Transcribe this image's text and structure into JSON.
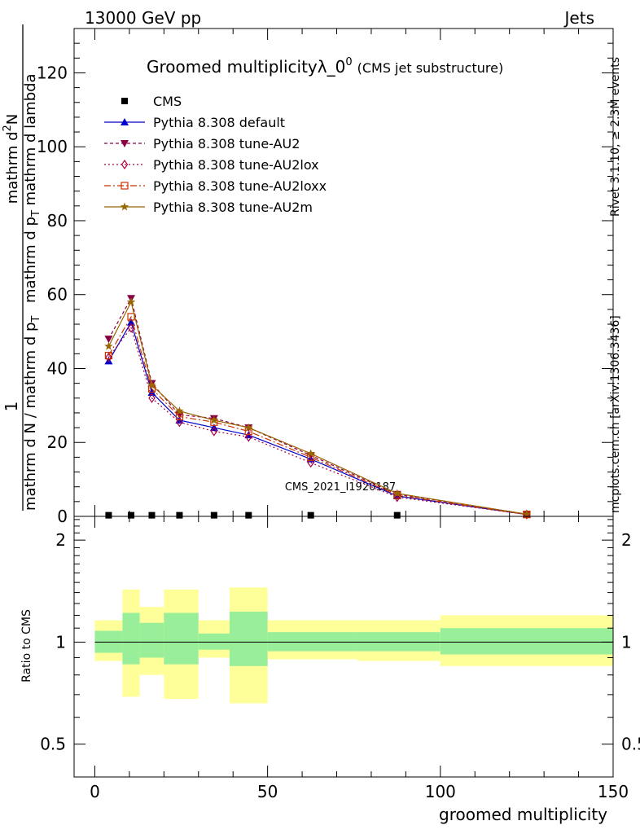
{
  "header": {
    "left": "13000 GeV pp",
    "right": "Jets"
  },
  "side_labels": {
    "rivet": "Rivet 3.1.10, ≥ 2.3M events",
    "mcplots": "mcplots.cern.ch [arXiv:1306.3436]"
  },
  "watermark": "CMS_2021_I1920187",
  "chart_data": [
    {
      "type": "line",
      "title_main": "Groomed multiplicityλ_0",
      "title_sup": "0",
      "title_small": "(CMS jet substructure)",
      "ylabel": {
        "num1": "1",
        "den1": "mathrm d N / mathrm d p",
        "den1_sub": "T",
        "num2": "mathrm d",
        "num2_sup": "2",
        "num2_end": "N",
        "den2": "mathrm d p",
        "den2_sub": "T",
        "den2_end": " mathrm d lambda"
      },
      "xlim": [
        -6,
        150
      ],
      "ylim": [
        0,
        132
      ],
      "yticks": [
        0,
        20,
        40,
        60,
        80,
        100,
        120
      ],
      "ytick_labels": [
        "0",
        "20",
        "40",
        "60",
        "80",
        "100",
        "120"
      ],
      "grid": false,
      "legend_position": "top-left",
      "series": [
        {
          "name": "CMS",
          "color": "#000000",
          "marker": "square",
          "dash": "",
          "x": [
            4,
            10.5,
            16.5,
            24.5,
            34.5,
            44.5,
            62.5,
            87.5
          ],
          "y": [
            0.3,
            0.3,
            0.3,
            0.3,
            0.3,
            0.3,
            0.3,
            0.3
          ]
        },
        {
          "name": "Pythia 8.308 default",
          "color": "#0000cc",
          "marker": "triangle-up",
          "dash": "",
          "x": [
            4,
            10.5,
            16.5,
            24.5,
            34.5,
            44.5,
            62.5,
            87.5,
            125
          ],
          "y": [
            42,
            52.5,
            33.5,
            26,
            24,
            22,
            15.5,
            5.5,
            0.5
          ]
        },
        {
          "name": "Pythia 8.308 tune-AU2",
          "color": "#880044",
          "marker": "triangle-down",
          "dash": "4,3",
          "x": [
            4,
            10.5,
            16.5,
            24.5,
            34.5,
            44.5,
            62.5,
            87.5,
            125
          ],
          "y": [
            48,
            59,
            36,
            27.5,
            26.5,
            24,
            16.5,
            6,
            0.6
          ]
        },
        {
          "name": "Pythia 8.308 tune-AU2lox",
          "color": "#aa0044",
          "marker": "diamond-open",
          "dash": "2,3",
          "x": [
            4,
            10.5,
            16.5,
            24.5,
            34.5,
            44.5,
            62.5,
            87.5,
            125
          ],
          "y": [
            43,
            51,
            32,
            25.5,
            23,
            21.5,
            14.5,
            5.2,
            0.5
          ]
        },
        {
          "name": "Pythia 8.308 tune-AU2loxx",
          "color": "#cc3300",
          "marker": "square-open",
          "dash": "8,3,2,3",
          "x": [
            4,
            10.5,
            16.5,
            24.5,
            34.5,
            44.5,
            62.5,
            87.5,
            125
          ],
          "y": [
            43.5,
            54,
            34.5,
            27,
            25.5,
            23,
            16,
            5.7,
            0.5
          ]
        },
        {
          "name": "Pythia 8.308 tune-AU2m",
          "color": "#996600",
          "marker": "star",
          "dash": "",
          "x": [
            4,
            10.5,
            16.5,
            24.5,
            34.5,
            44.5,
            62.5,
            87.5,
            125
          ],
          "y": [
            46,
            58,
            35.5,
            28.5,
            26,
            24,
            17,
            6.2,
            0.6
          ]
        }
      ]
    },
    {
      "type": "area",
      "ylabel": "Ratio to CMS",
      "xlabel": "groomed multiplicity",
      "xlim": [
        -6,
        150
      ],
      "ylim": [
        0.4,
        2.35
      ],
      "scale": "log",
      "xticks": [
        0,
        50,
        100,
        150
      ],
      "xtick_labels": [
        "0",
        "50",
        "100",
        "150"
      ],
      "yticks": [
        0.5,
        1,
        2
      ],
      "ytick_labels": [
        "0.5",
        "1",
        "2"
      ],
      "reference": 1,
      "grid": false,
      "bins": [
        {
          "lo": 0,
          "hi": 8,
          "stat_lo": 0.93,
          "stat_hi": 1.08,
          "tot_lo": 0.88,
          "tot_hi": 1.16
        },
        {
          "lo": 8,
          "hi": 13,
          "stat_lo": 0.86,
          "stat_hi": 1.22,
          "tot_lo": 0.69,
          "tot_hi": 1.43
        },
        {
          "lo": 13,
          "hi": 20,
          "stat_lo": 0.9,
          "stat_hi": 1.14,
          "tot_lo": 0.8,
          "tot_hi": 1.27
        },
        {
          "lo": 20,
          "hi": 30,
          "stat_lo": 0.86,
          "stat_hi": 1.22,
          "tot_lo": 0.68,
          "tot_hi": 1.43
        },
        {
          "lo": 30,
          "hi": 39,
          "stat_lo": 0.95,
          "stat_hi": 1.06,
          "tot_lo": 0.9,
          "tot_hi": 1.16
        },
        {
          "lo": 39,
          "hi": 50,
          "stat_lo": 0.85,
          "stat_hi": 1.23,
          "tot_lo": 0.66,
          "tot_hi": 1.45
        },
        {
          "lo": 50,
          "hi": 76,
          "stat_lo": 0.94,
          "stat_hi": 1.07,
          "tot_lo": 0.89,
          "tot_hi": 1.16
        },
        {
          "lo": 76,
          "hi": 100,
          "stat_lo": 0.94,
          "stat_hi": 1.07,
          "tot_lo": 0.88,
          "tot_hi": 1.16
        },
        {
          "lo": 100,
          "hi": 150,
          "stat_lo": 0.92,
          "stat_hi": 1.1,
          "tot_lo": 0.85,
          "tot_hi": 1.2
        }
      ],
      "colors": {
        "stat": "#99ee99",
        "total": "#ffff99",
        "line": "#000000"
      }
    }
  ]
}
